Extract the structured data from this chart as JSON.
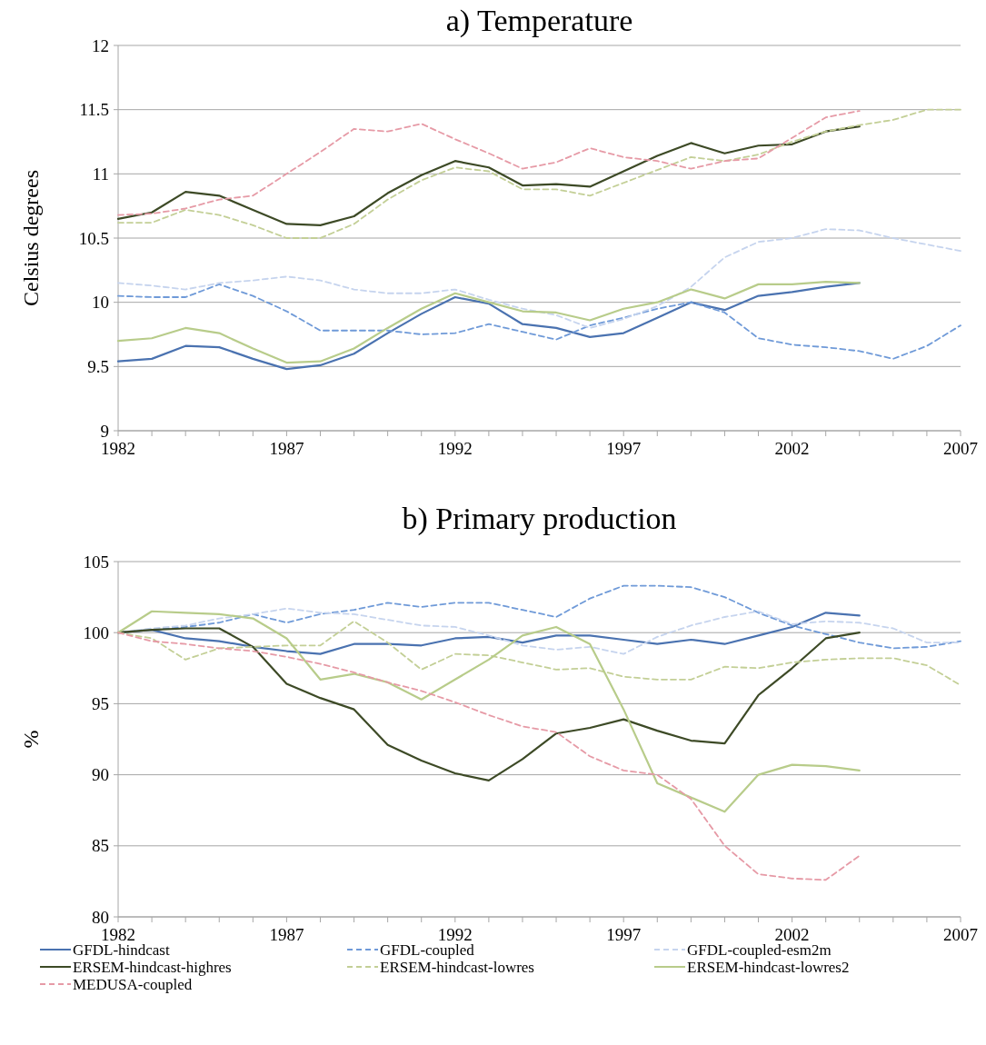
{
  "chart_data": [
    {
      "type": "line",
      "title": "a) Temperature",
      "ylabel": "Celsius degrees",
      "x": [
        1982,
        1983,
        1984,
        1985,
        1986,
        1987,
        1988,
        1989,
        1990,
        1991,
        1992,
        1993,
        1994,
        1995,
        1996,
        1997,
        1998,
        1999,
        2000,
        2001,
        2002,
        2003,
        2004,
        2005,
        2006,
        2007
      ],
      "xlim": [
        1982,
        2007
      ],
      "xticks": [
        1982,
        {
          "value": 1983,
          "label": null
        },
        {
          "value": 1984,
          "label": null
        },
        {
          "value": 1985,
          "label": null
        },
        {
          "value": 1986,
          "label": null
        },
        1987,
        {
          "value": 1988,
          "label": null
        },
        {
          "value": 1989,
          "label": null
        },
        {
          "value": 1990,
          "label": null
        },
        {
          "value": 1991,
          "label": null
        },
        1992,
        {
          "value": 1993,
          "label": null
        },
        {
          "value": 1994,
          "label": null
        },
        {
          "value": 1995,
          "label": null
        },
        {
          "value": 1996,
          "label": null
        },
        1997,
        {
          "value": 1998,
          "label": null
        },
        {
          "value": 1999,
          "label": null
        },
        {
          "value": 2000,
          "label": null
        },
        {
          "value": 2001,
          "label": null
        },
        2002,
        {
          "value": 2003,
          "label": null
        },
        {
          "value": 2004,
          "label": null
        },
        {
          "value": 2005,
          "label": null
        },
        {
          "value": 2006,
          "label": null
        },
        2007
      ],
      "ylim": [
        9,
        12
      ],
      "yticks": [
        9,
        9.5,
        10,
        10.5,
        11,
        11.5,
        12
      ],
      "grid": "y",
      "legend": false,
      "series": [
        {
          "color": "#4a72b0",
          "line_style": "solid",
          "values": [
            9.54,
            9.56,
            9.66,
            9.65,
            9.56,
            9.48,
            9.51,
            9.6,
            9.76,
            9.91,
            10.04,
            9.99,
            9.83,
            9.8,
            9.73,
            9.76,
            9.88,
            10.0,
            9.94,
            10.05,
            10.08,
            10.12,
            10.15,
            null,
            null,
            null
          ]
        },
        {
          "color": "#6f9ad8",
          "line_style": "dashed",
          "values": [
            10.05,
            10.04,
            10.04,
            10.14,
            10.05,
            9.93,
            9.78,
            9.78,
            9.78,
            9.75,
            9.76,
            9.83,
            9.77,
            9.71,
            9.82,
            9.88,
            9.95,
            10.0,
            9.92,
            9.72,
            9.67,
            9.65,
            9.62,
            9.56,
            9.66,
            9.82
          ]
        },
        {
          "color": "#c6d4ee",
          "line_style": "dashed",
          "values": [
            10.15,
            10.13,
            10.1,
            10.15,
            10.17,
            10.2,
            10.17,
            10.1,
            10.07,
            10.07,
            10.1,
            10.02,
            9.95,
            9.9,
            9.8,
            9.87,
            9.97,
            10.12,
            10.35,
            10.47,
            10.5,
            10.57,
            10.56,
            10.5,
            10.45,
            10.4
          ]
        },
        {
          "color": "#3d4a26",
          "line_style": "solid",
          "values": [
            10.65,
            10.7,
            10.86,
            10.83,
            10.72,
            10.61,
            10.6,
            10.67,
            10.85,
            10.99,
            11.1,
            11.05,
            10.91,
            10.92,
            10.9,
            11.02,
            11.14,
            11.24,
            11.16,
            11.22,
            11.23,
            11.33,
            11.37,
            null,
            null,
            null
          ]
        },
        {
          "color": "#c3cf96",
          "line_style": "dashed",
          "values": [
            10.62,
            10.62,
            10.72,
            10.68,
            10.6,
            10.5,
            10.5,
            10.61,
            10.8,
            10.95,
            11.05,
            11.02,
            10.88,
            10.88,
            10.83,
            10.93,
            11.03,
            11.13,
            11.1,
            11.15,
            11.25,
            11.33,
            11.38,
            11.42,
            11.5,
            11.5
          ]
        },
        {
          "color": "#b8cc8a",
          "line_style": "solid",
          "values": [
            9.7,
            9.72,
            9.8,
            9.76,
            9.64,
            9.53,
            9.54,
            9.64,
            9.8,
            9.95,
            10.07,
            10.0,
            9.93,
            9.92,
            9.86,
            9.95,
            10.0,
            10.1,
            10.03,
            10.14,
            10.14,
            10.16,
            10.15,
            null,
            null,
            null
          ]
        },
        {
          "color": "#e69aa6",
          "line_style": "dashed",
          "values": [
            10.68,
            10.69,
            10.73,
            10.8,
            10.83,
            11.0,
            11.17,
            11.35,
            11.33,
            11.39,
            11.27,
            11.16,
            11.04,
            11.09,
            11.2,
            11.13,
            11.1,
            11.04,
            11.1,
            11.12,
            11.28,
            11.44,
            11.49,
            null,
            null,
            null
          ]
        }
      ]
    },
    {
      "type": "line",
      "title": "b) Primary production",
      "ylabel": "%",
      "x": [
        1982,
        1983,
        1984,
        1985,
        1986,
        1987,
        1988,
        1989,
        1990,
        1991,
        1992,
        1993,
        1994,
        1995,
        1996,
        1997,
        1998,
        1999,
        2000,
        2001,
        2002,
        2003,
        2004,
        2005,
        2006,
        2007
      ],
      "xlim": [
        1982,
        2007
      ],
      "xticks": [
        1982,
        {
          "value": 1983,
          "label": null
        },
        {
          "value": 1984,
          "label": null
        },
        {
          "value": 1985,
          "label": null
        },
        {
          "value": 1986,
          "label": null
        },
        1987,
        {
          "value": 1988,
          "label": null
        },
        {
          "value": 1989,
          "label": null
        },
        {
          "value": 1990,
          "label": null
        },
        {
          "value": 1991,
          "label": null
        },
        1992,
        {
          "value": 1993,
          "label": null
        },
        {
          "value": 1994,
          "label": null
        },
        {
          "value": 1995,
          "label": null
        },
        {
          "value": 1996,
          "label": null
        },
        1997,
        {
          "value": 1998,
          "label": null
        },
        {
          "value": 1999,
          "label": null
        },
        {
          "value": 2000,
          "label": null
        },
        {
          "value": 2001,
          "label": null
        },
        2002,
        {
          "value": 2003,
          "label": null
        },
        {
          "value": 2004,
          "label": null
        },
        {
          "value": 2005,
          "label": null
        },
        {
          "value": 2006,
          "label": null
        },
        2007
      ],
      "ylim": [
        80,
        105
      ],
      "yticks": [
        80,
        85,
        90,
        95,
        100,
        105
      ],
      "grid": "y",
      "legend": "bottom",
      "series": [
        {
          "name": "GFDL-hindcast",
          "color": "#4a72b0",
          "line_style": "solid",
          "values": [
            100,
            100.2,
            99.6,
            99.4,
            99.0,
            98.7,
            98.5,
            99.2,
            99.2,
            99.1,
            99.6,
            99.7,
            99.3,
            99.8,
            99.8,
            99.5,
            99.2,
            99.5,
            99.2,
            99.8,
            100.4,
            101.4,
            101.2,
            null,
            null,
            null
          ]
        },
        {
          "name": "GFDL-coupled",
          "color": "#6f9ad8",
          "line_style": "dashed",
          "values": [
            100,
            100.2,
            100.4,
            100.7,
            101.3,
            100.7,
            101.3,
            101.6,
            102.1,
            101.8,
            102.1,
            102.1,
            101.6,
            101.1,
            102.4,
            103.3,
            103.3,
            103.2,
            102.5,
            101.4,
            100.5,
            99.9,
            99.3,
            98.9,
            99.0,
            99.4
          ]
        },
        {
          "name": "GFDL-coupled-esm2m",
          "color": "#c6d4ee",
          "line_style": "dashed",
          "values": [
            100,
            100.3,
            100.5,
            101,
            101.3,
            101.7,
            101.4,
            101.3,
            100.9,
            100.5,
            100.4,
            99.8,
            99.1,
            98.8,
            99,
            98.5,
            99.7,
            100.5,
            101.1,
            101.5,
            100.6,
            100.8,
            100.7,
            100.3,
            99.3,
            99.3
          ]
        },
        {
          "name": "ERSEM-hindcast-highres",
          "color": "#3d4a26",
          "line_style": "solid",
          "values": [
            100,
            100.2,
            100.3,
            100.3,
            99.0,
            96.4,
            95.4,
            94.6,
            92.1,
            91.0,
            90.1,
            89.6,
            91.1,
            92.9,
            93.3,
            93.9,
            93.1,
            92.4,
            92.2,
            95.6,
            97.5,
            99.6,
            100,
            null,
            null,
            null
          ]
        },
        {
          "name": "ERSEM-hindcast-lowres",
          "color": "#c3cf96",
          "line_style": "dashed",
          "values": [
            100,
            99.6,
            98.1,
            98.9,
            99.0,
            99.1,
            99.1,
            100.8,
            99.3,
            97.4,
            98.5,
            98.4,
            97.9,
            97.4,
            97.5,
            96.9,
            96.7,
            96.7,
            97.6,
            97.5,
            97.9,
            98.1,
            98.2,
            98.2,
            97.7,
            96.3
          ]
        },
        {
          "name": "ERSEM-hindcast-lowres2",
          "color": "#b8cc8a",
          "line_style": "solid",
          "values": [
            100,
            101.5,
            101.4,
            101.3,
            101,
            99.6,
            96.7,
            97.1,
            96.5,
            95.3,
            96.7,
            98.1,
            99.8,
            100.4,
            99.2,
            94.6,
            89.4,
            88.4,
            87.4,
            90,
            90.7,
            90.6,
            90.3,
            null,
            null,
            null
          ]
        },
        {
          "name": "MEDUSA-coupled",
          "color": "#e69aa6",
          "line_style": "dashed",
          "values": [
            100,
            99.4,
            99.2,
            98.9,
            98.7,
            98.3,
            97.8,
            97.2,
            96.5,
            95.9,
            95.1,
            94.2,
            93.4,
            93.0,
            91.3,
            90.3,
            90.0,
            88.3,
            85.0,
            83.0,
            82.7,
            82.6,
            84.3,
            null,
            null,
            null
          ]
        }
      ]
    }
  ]
}
